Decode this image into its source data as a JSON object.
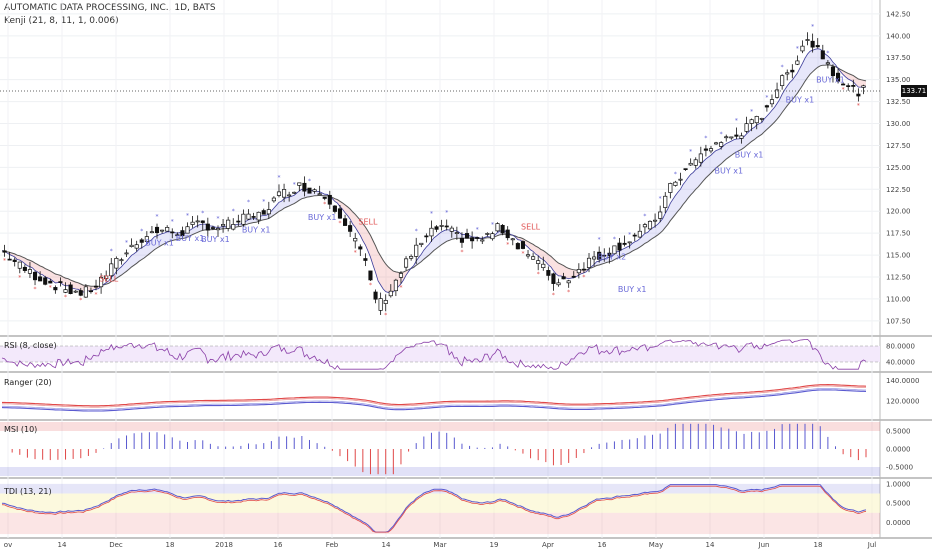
{
  "header": {
    "title": "AUTOMATIC DATA PROCESSING, INC., 1D, BATS",
    "indicator": "Kenji (21, 8, 11, 1, 0.006)"
  },
  "last_price_label": "133.71",
  "panes": {
    "rsi": "RSI (8, close)",
    "ranger": "Ranger (20)",
    "msi": "MSI (10)",
    "tdi": "TDI (13, 21)"
  },
  "chart_data": {
    "type": "candlestick",
    "price_axis": {
      "ticks": [
        "142.50",
        "140.00",
        "137.50",
        "135.00",
        "132.50",
        "130.00",
        "127.50",
        "125.00",
        "122.50",
        "120.00",
        "117.50",
        "115.00",
        "112.50",
        "110.00",
        "107.50"
      ],
      "range": [
        106,
        143.4
      ]
    },
    "rsi_axis": {
      "ticks": [
        "80.0000",
        "40.0000"
      ]
    },
    "ranger_axis": {
      "ticks": [
        "140.0000",
        "120.0000"
      ]
    },
    "msi_axis": {
      "ticks": [
        "0.5000",
        "0.0000",
        "-0.5000"
      ]
    },
    "tdi_axis": {
      "ticks": [
        "1.0000",
        "0.5000",
        "0.0000"
      ]
    },
    "x_ticks": [
      "ov",
      "14",
      "Dec",
      "18",
      "2018",
      "16",
      "Feb",
      "14",
      "Mar",
      "19",
      "Apr",
      "16",
      "May",
      "14",
      "Jun",
      "18",
      "Jul"
    ],
    "last_price": 133.71,
    "close_path": [
      [
        0,
        115.5
      ],
      [
        8,
        113.5
      ],
      [
        16,
        112.2
      ],
      [
        24,
        111.2
      ],
      [
        32,
        110.6
      ],
      [
        38,
        111.8
      ],
      [
        46,
        114.5
      ],
      [
        54,
        116.8
      ],
      [
        62,
        117.9
      ],
      [
        70,
        117.5
      ],
      [
        78,
        118.6
      ],
      [
        86,
        118.1
      ],
      [
        94,
        119.0
      ],
      [
        102,
        119.6
      ],
      [
        108,
        121.6
      ],
      [
        116,
        122.9
      ],
      [
        124,
        122.4
      ],
      [
        130,
        121.0
      ],
      [
        136,
        118.4
      ],
      [
        142,
        114.8
      ],
      [
        148,
        109.2
      ],
      [
        154,
        111.5
      ],
      [
        160,
        114.6
      ],
      [
        166,
        116.7
      ],
      [
        172,
        118.3
      ],
      [
        180,
        117.0
      ],
      [
        188,
        116.6
      ],
      [
        196,
        118.2
      ],
      [
        204,
        116.0
      ],
      [
        212,
        113.8
      ],
      [
        218,
        111.8
      ],
      [
        224,
        112.6
      ],
      [
        232,
        114.6
      ],
      [
        240,
        115.6
      ],
      [
        248,
        117.0
      ],
      [
        256,
        118.5
      ],
      [
        264,
        123.2
      ],
      [
        272,
        125.5
      ],
      [
        280,
        127.6
      ],
      [
        290,
        128.8
      ],
      [
        298,
        130.6
      ],
      [
        306,
        134.5
      ],
      [
        312,
        136.8
      ],
      [
        316,
        139.8
      ],
      [
        322,
        138.3
      ],
      [
        328,
        135.6
      ],
      [
        334,
        133.8
      ],
      [
        338,
        133.71
      ]
    ],
    "signals": [
      {
        "label": "SELL",
        "t": 42,
        "price": 112.0,
        "color": "#e05555"
      },
      {
        "label": "BUY x1",
        "t": 62,
        "price": 116.1,
        "color": "#6a6ad8"
      },
      {
        "label": "BUY x1",
        "t": 74,
        "price": 116.6,
        "color": "#6a6ad8"
      },
      {
        "label": "BUY x1",
        "t": 84,
        "price": 116.5,
        "color": "#6a6ad8"
      },
      {
        "label": "BUY x1",
        "t": 100,
        "price": 117.6,
        "color": "#6a6ad8"
      },
      {
        "label": "BUY x1",
        "t": 126,
        "price": 119.0,
        "color": "#6a6ad8"
      },
      {
        "label": "SELL",
        "t": 144,
        "price": 118.5,
        "color": "#e05555"
      },
      {
        "label": "SELL",
        "t": 208,
        "price": 117.9,
        "color": "#e05555"
      },
      {
        "label": "BUY x2",
        "t": 240,
        "price": 114.5,
        "color": "#6a6ad8"
      },
      {
        "label": "BUY x1",
        "t": 248,
        "price": 110.8,
        "color": "#6a6ad8"
      },
      {
        "label": "BUY x1",
        "t": 286,
        "price": 124.3,
        "color": "#6a6ad8"
      },
      {
        "label": "BUY x1",
        "t": 294,
        "price": 126.1,
        "color": "#6a6ad8"
      },
      {
        "label": "BUY x1",
        "t": 314,
        "price": 132.4,
        "color": "#6a6ad8"
      },
      {
        "label": "BUY x1",
        "t": 326,
        "price": 134.7,
        "color": "#6a6ad8"
      }
    ],
    "colors": {
      "up": "#ffffff",
      "down": "#111111",
      "buy": "#6a6ad8",
      "sell": "#e05555",
      "rsi": "#8a3fa8",
      "rsi_band": "#f3e9fb",
      "ranger_red": "#e04848",
      "ranger_blue": "#5a5ad0",
      "msi_pos": "#5a5ad0",
      "msi_neg": "#e04848",
      "tdi_red": "#e04848",
      "tdi_blue": "#5a5ad0"
    }
  }
}
